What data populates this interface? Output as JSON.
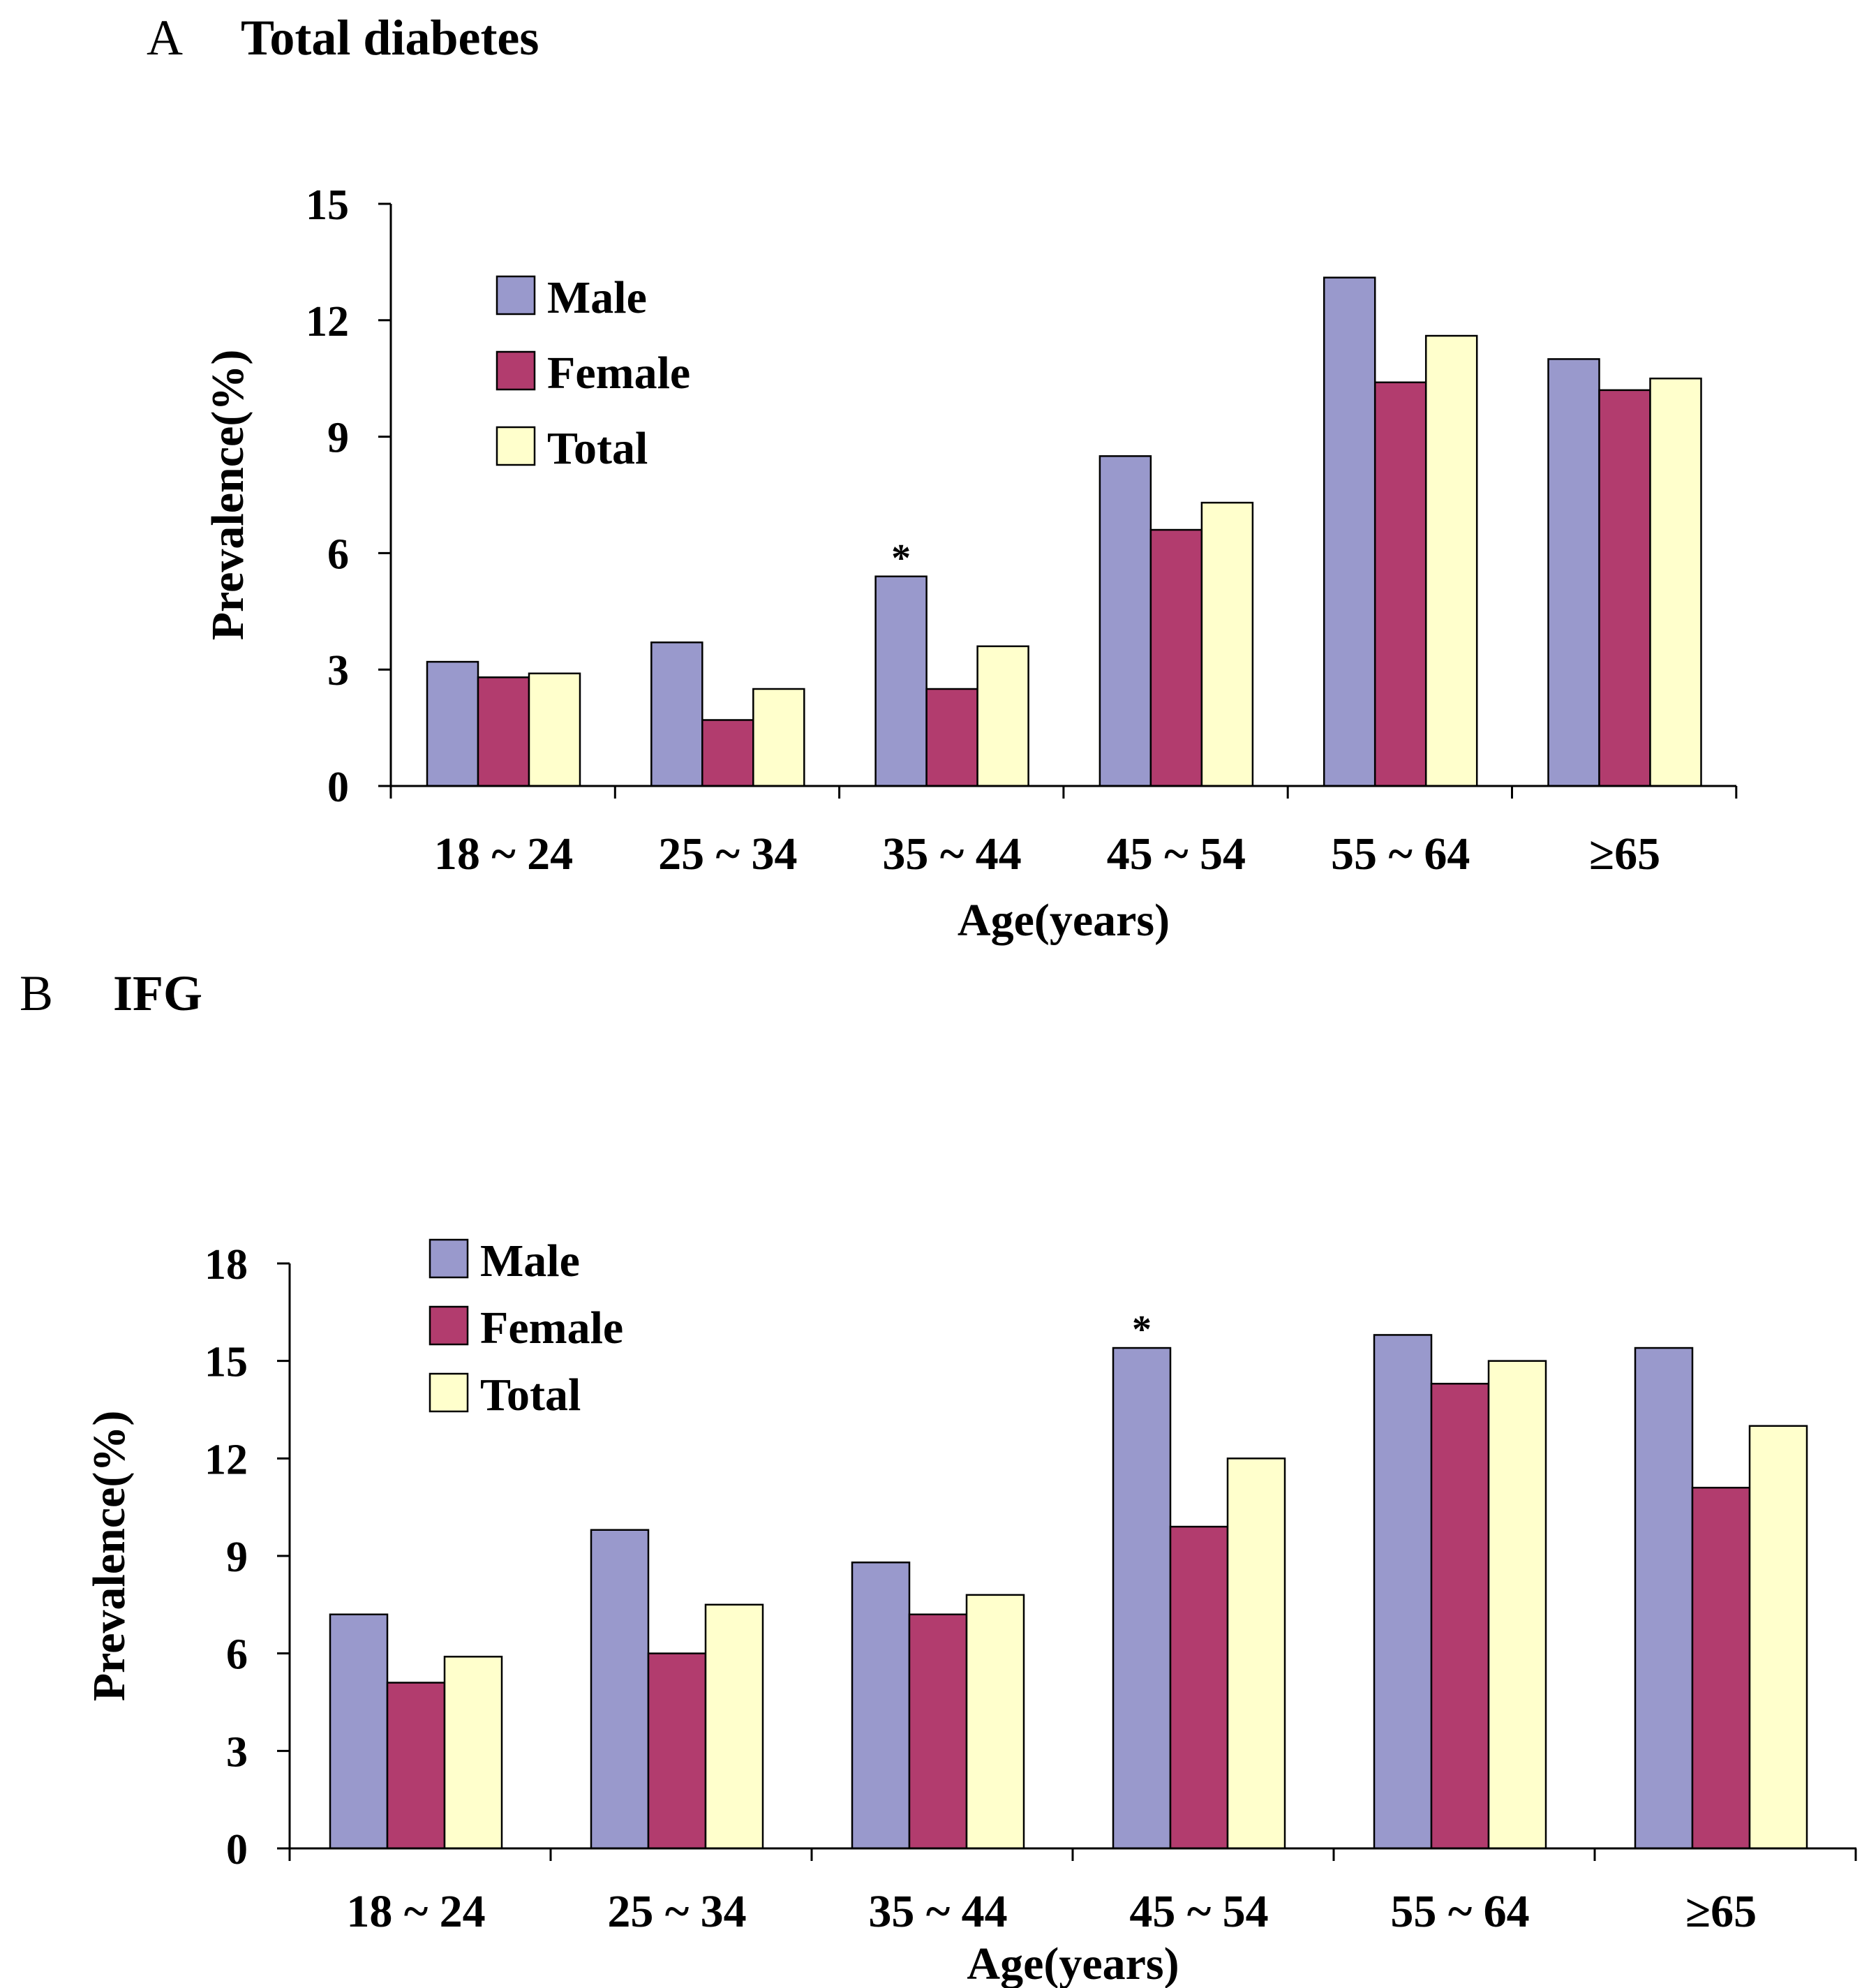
{
  "chart_data": [
    {
      "type": "bar",
      "panel": "A",
      "title": "Total diabetes",
      "xlabel": "Age(years)",
      "ylabel": "Prevalence(%)",
      "ylim": [
        0,
        15
      ],
      "yticks": [
        "0",
        "3",
        "6",
        "9",
        "12",
        "15"
      ],
      "categories": [
        "18 ~ 24",
        "25 ~ 34",
        "35 ~ 44",
        "45 ~ 54",
        "55 ~ 64",
        "≥65"
      ],
      "series": [
        {
          "name": "Male",
          "color": "#9999cc",
          "values": [
            3.2,
            3.7,
            5.4,
            8.5,
            13.1,
            11.0
          ]
        },
        {
          "name": "Female",
          "color": "#b23c6e",
          "values": [
            2.8,
            1.7,
            2.5,
            6.6,
            10.4,
            10.2
          ]
        },
        {
          "name": "Total",
          "color": "#ffffcc",
          "values": [
            2.9,
            2.5,
            3.6,
            7.3,
            11.6,
            10.5
          ]
        }
      ],
      "annotations": [
        {
          "text": "*",
          "category": "35 ~ 44",
          "series": "Male"
        }
      ],
      "legend": "upper-left",
      "grid": false
    },
    {
      "type": "bar",
      "panel": "B",
      "title": "IFG",
      "xlabel": "Age(years)",
      "ylabel": "Prevalence(%)",
      "ylim": [
        0,
        18
      ],
      "yticks": [
        "0",
        "3",
        "6",
        "9",
        "12",
        "15",
        "18"
      ],
      "categories": [
        "18 ~ 24",
        "25 ~ 34",
        "35 ~ 44",
        "45 ~ 54",
        "55 ~ 64",
        "≥65"
      ],
      "series": [
        {
          "name": "Male",
          "color": "#9999cc",
          "values": [
            7.2,
            9.8,
            8.8,
            15.4,
            15.8,
            15.4
          ]
        },
        {
          "name": "Female",
          "color": "#b23c6e",
          "values": [
            5.1,
            6.0,
            7.2,
            9.9,
            14.3,
            11.1
          ]
        },
        {
          "name": "Total",
          "color": "#ffffcc",
          "values": [
            5.9,
            7.5,
            7.8,
            12.0,
            15.0,
            13.0
          ]
        }
      ],
      "annotations": [
        {
          "text": "*",
          "category": "45 ~ 54",
          "series": "Male"
        }
      ],
      "legend": "upper-left",
      "grid": false
    }
  ]
}
